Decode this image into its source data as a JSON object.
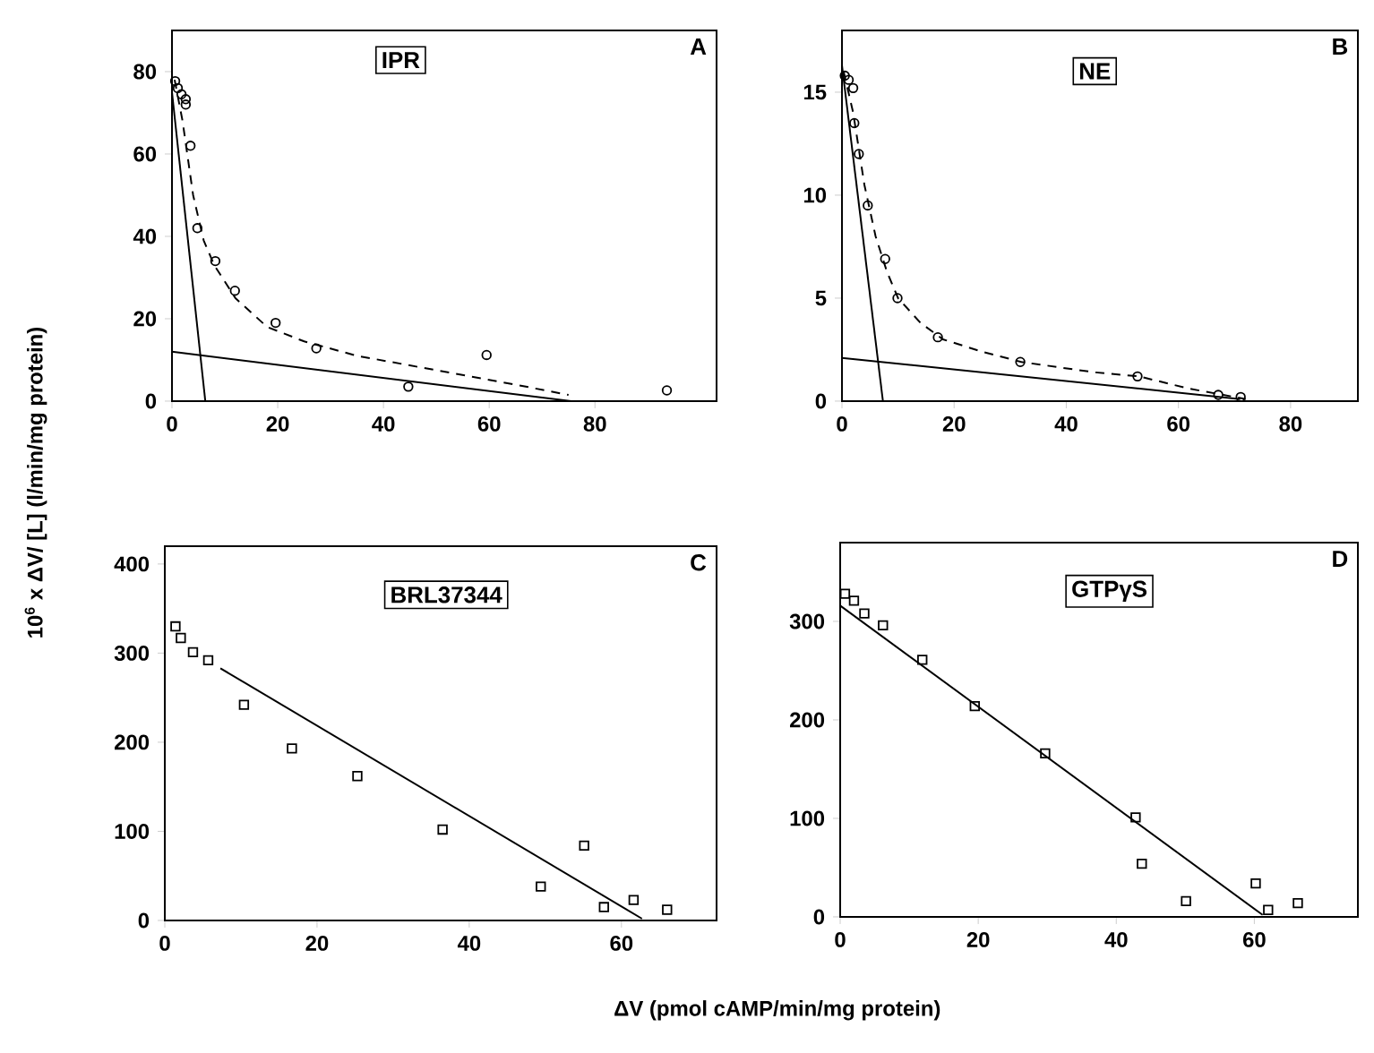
{
  "chart_data": [
    {
      "type": "scatter",
      "title": "IPR",
      "annotations": [
        "A"
      ],
      "ylabel": "10$^{6}$ x  ΔV/ [L]    (l/min/mg protein)",
      "xlim": [
        0,
        103
      ],
      "ylim": [
        0,
        90
      ],
      "xticks": [
        0,
        20,
        40,
        60,
        80
      ],
      "yticks": [
        0,
        20,
        40,
        60,
        80
      ],
      "series": [
        {
          "color": "#000000",
          "marker": "circle",
          "x": [
            0.6,
            1.1,
            1.8,
            2.6,
            2.6,
            3.5,
            4.8,
            8.2,
            11.9,
            19.6,
            27.3,
            44.7,
            59.5,
            93.6
          ],
          "values": [
            77.7,
            76,
            74.5,
            73.3,
            72,
            62,
            42,
            34,
            26.8,
            19,
            12.8,
            3.5,
            11.2,
            2.6
          ]
        },
        {
          "type": "line",
          "color": "#000000",
          "line_style": "dashed",
          "x": [
            0.5,
            2,
            4,
            6,
            8,
            12,
            18,
            25,
            35,
            50,
            65,
            75
          ],
          "values": [
            78,
            68,
            50,
            39,
            33,
            25,
            18,
            14.5,
            11,
            7.5,
            4,
            1.5
          ]
        },
        {
          "type": "line",
          "color": "#000000",
          "line_style": "solid",
          "x": [
            0,
            6.3
          ],
          "values": [
            75,
            0
          ]
        },
        {
          "type": "line",
          "color": "#000000",
          "line_style": "solid",
          "x": [
            0,
            75.5
          ],
          "values": [
            12,
            0
          ]
        }
      ]
    },
    {
      "type": "scatter",
      "title": "NE",
      "annotations": [
        "B"
      ],
      "xlim": [
        0,
        92
      ],
      "ylim": [
        0,
        18
      ],
      "xticks": [
        0,
        20,
        40,
        60,
        80
      ],
      "yticks": [
        0,
        5,
        10,
        15
      ],
      "series": [
        {
          "color": "#000000",
          "marker": "circle",
          "x": [
            0.5,
            1.2,
            2,
            2.2,
            3,
            4.6,
            7.7,
            9.9,
            17.1,
            31.8,
            52.7,
            67.1,
            71.1
          ],
          "values": [
            15.8,
            15.6,
            15.2,
            13.5,
            12,
            9.5,
            6.9,
            5,
            3.1,
            1.9,
            1.2,
            0.3,
            0.2
          ]
        },
        {
          "type": "line",
          "color": "#000000",
          "line_style": "dashed",
          "x": [
            0.3,
            2,
            4,
            6,
            8,
            10,
            14,
            18,
            25,
            32,
            45,
            53,
            62,
            72
          ],
          "values": [
            16,
            14,
            10.5,
            8,
            6.3,
            5,
            3.8,
            3,
            2.4,
            1.9,
            1.4,
            1.2,
            0.6,
            0.1
          ]
        },
        {
          "type": "line",
          "color": "#000000",
          "line_style": "solid",
          "x": [
            0,
            7.3
          ],
          "values": [
            16.3,
            0
          ]
        },
        {
          "type": "line",
          "color": "#000000",
          "line_style": "solid",
          "x": [
            0,
            71
          ],
          "values": [
            2.1,
            0.1
          ]
        }
      ]
    },
    {
      "type": "scatter",
      "title": "BRL37344",
      "annotations": [
        "C"
      ],
      "xlabel": "ΔV   (pmol cAMP/min/mg protein)",
      "xlim": [
        0,
        72.5
      ],
      "ylim": [
        0,
        420
      ],
      "xticks": [
        0,
        20,
        40,
        60
      ],
      "yticks": [
        0,
        100,
        200,
        300,
        400
      ],
      "series": [
        {
          "color": "#000000",
          "marker": "square",
          "x": [
            1.4,
            2.1,
            3.7,
            5.7,
            10.4,
            16.7,
            25.3,
            36.5,
            49.4,
            55.1,
            57.7,
            61.6,
            66
          ],
          "values": [
            330,
            317,
            301,
            292,
            242,
            193,
            162,
            102,
            38,
            84,
            15,
            23,
            12
          ]
        },
        {
          "type": "line",
          "color": "#000000",
          "line_style": "solid",
          "x": [
            7.3,
            62.7
          ],
          "values": [
            283,
            2
          ]
        }
      ]
    },
    {
      "type": "scatter",
      "title": "GTPγS",
      "annotations": [
        "D"
      ],
      "xlim": [
        0,
        75
      ],
      "ylim": [
        0,
        380
      ],
      "xticks": [
        0,
        20,
        40,
        60
      ],
      "yticks": [
        0,
        100,
        200,
        300
      ],
      "series": [
        {
          "color": "#000000",
          "marker": "square",
          "x": [
            0.7,
            2,
            3.5,
            6.2,
            11.9,
            19.5,
            29.7,
            42.8,
            43.7,
            50.1,
            60.2,
            62,
            66.3
          ],
          "values": [
            328,
            321,
            308,
            296,
            261,
            214,
            166,
            101,
            54,
            16,
            34,
            7,
            14
          ]
        },
        {
          "type": "line",
          "color": "#000000",
          "line_style": "solid",
          "x": [
            0,
            61.2
          ],
          "values": [
            316,
            2
          ]
        }
      ]
    }
  ]
}
